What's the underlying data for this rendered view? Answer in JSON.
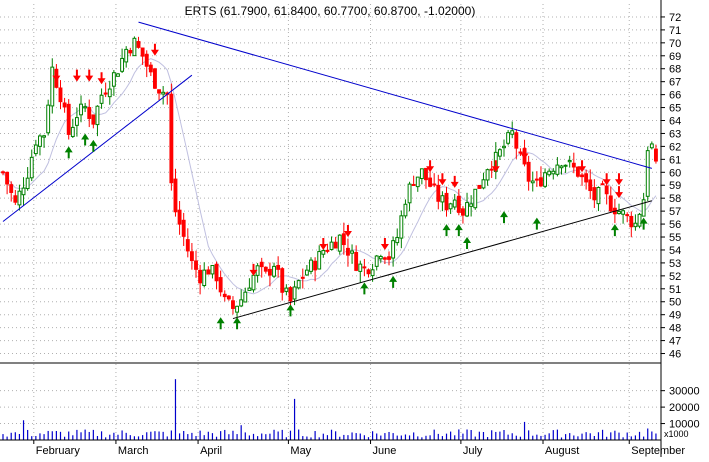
{
  "chart_data": {
    "type": "candlestick",
    "title": "ERTS (61.7900, 61.8400, 60.7700, 60.8700, -1.02000)",
    "price_axis": {
      "range": [
        45.5,
        73
      ],
      "ticks": [
        46,
        47,
        48,
        49,
        50,
        51,
        52,
        53,
        54,
        55,
        56,
        57,
        58,
        59,
        60,
        61,
        62,
        63,
        64,
        65,
        66,
        67,
        68,
        69,
        70,
        71,
        72
      ]
    },
    "volume_axis": {
      "range": [
        0,
        45000
      ],
      "ticks": [
        10000,
        20000,
        30000
      ],
      "tick_labels": [
        "10000",
        "20000",
        "30000"
      ],
      "unit": "x1000"
    },
    "months": [
      {
        "label": "February",
        "index": 8
      },
      {
        "label": "March",
        "index": 28
      },
      {
        "label": "April",
        "index": 48
      },
      {
        "label": "May",
        "index": 70
      },
      {
        "label": "June",
        "index": 90
      },
      {
        "label": "July",
        "index": 112
      },
      {
        "label": "August",
        "index": 132
      },
      {
        "label": "September",
        "index": 153
      }
    ],
    "grid": true,
    "colors": {
      "up": "#008000",
      "down": "#ff0000",
      "volume": "#0000cc",
      "trend_upper": "#0000cc",
      "trend_lower": "#000000",
      "ma": "#c0c0e0",
      "grid": "#b0b0b0"
    },
    "last_bar": {
      "open": 61.79,
      "high": 61.84,
      "low": 60.77,
      "close": 60.87,
      "change": -1.02
    },
    "trendlines": [
      {
        "name": "",
        "color": "#0000cc",
        "points": [
          [
            0,
            56.2
          ],
          [
            46,
            67.5
          ]
        ]
      },
      {
        "name": "",
        "color": "#0000cc",
        "points": [
          [
            33,
            71.6
          ],
          [
            158,
            60.3
          ]
        ]
      },
      {
        "name": "",
        "color": "#000000",
        "points": [
          [
            56,
            48.7
          ],
          [
            158,
            57.8
          ]
        ]
      }
    ],
    "signals": [
      {
        "i": 13,
        "type": "sell",
        "price": 67.0
      },
      {
        "i": 18,
        "type": "sell",
        "price": 67.0
      },
      {
        "i": 21,
        "type": "sell",
        "price": 67.0
      },
      {
        "i": 24,
        "type": "sell",
        "price": 66.8
      },
      {
        "i": 37,
        "type": "sell",
        "price": 69.0
      },
      {
        "i": 61,
        "type": "sell",
        "price": 52.0
      },
      {
        "i": 78,
        "type": "sell",
        "price": 54.0
      },
      {
        "i": 84,
        "type": "sell",
        "price": 55.0
      },
      {
        "i": 93,
        "type": "sell",
        "price": 54.0
      },
      {
        "i": 104,
        "type": "sell",
        "price": 60.0
      },
      {
        "i": 107,
        "type": "sell",
        "price": 59.0
      },
      {
        "i": 110,
        "type": "sell",
        "price": 58.8
      },
      {
        "i": 120,
        "type": "sell",
        "price": 60.0
      },
      {
        "i": 127,
        "type": "sell",
        "price": 61.0
      },
      {
        "i": 141,
        "type": "sell",
        "price": 60.0
      },
      {
        "i": 147,
        "type": "sell",
        "price": 59.0
      },
      {
        "i": 150,
        "type": "sell",
        "price": 59.0
      },
      {
        "i": 150,
        "type": "sell",
        "price": 58.0
      },
      {
        "i": 16,
        "type": "buy",
        "price": 62.0
      },
      {
        "i": 20,
        "type": "buy",
        "price": 63.0
      },
      {
        "i": 22,
        "type": "buy",
        "price": 62.5
      },
      {
        "i": 53,
        "type": "buy",
        "price": 48.8
      },
      {
        "i": 57,
        "type": "buy",
        "price": 48.8
      },
      {
        "i": 70,
        "type": "buy",
        "price": 49.8
      },
      {
        "i": 88,
        "type": "buy",
        "price": 51.5
      },
      {
        "i": 95,
        "type": "buy",
        "price": 52.0
      },
      {
        "i": 108,
        "type": "buy",
        "price": 56.0
      },
      {
        "i": 111,
        "type": "buy",
        "price": 56.0
      },
      {
        "i": 113,
        "type": "buy",
        "price": 55.0
      },
      {
        "i": 122,
        "type": "buy",
        "price": 57.0
      },
      {
        "i": 130,
        "type": "buy",
        "price": 56.5
      },
      {
        "i": 149,
        "type": "buy",
        "price": 56.0
      },
      {
        "i": 156,
        "type": "buy",
        "price": 56.5
      }
    ],
    "volume_spikes": [
      {
        "i": 42,
        "value": 37000
      },
      {
        "i": 71,
        "value": 25000
      },
      {
        "i": 5,
        "value": 12000
      },
      {
        "i": 58,
        "value": 9000
      },
      {
        "i": 127,
        "value": 11000
      },
      {
        "i": 157,
        "value": 7000
      }
    ],
    "last_index": 159
  }
}
